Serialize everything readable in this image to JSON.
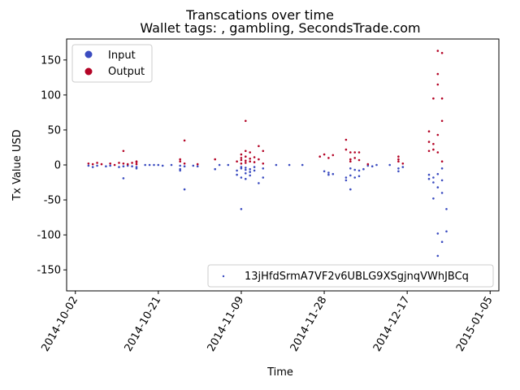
{
  "chart_data": {
    "type": "scatter",
    "title": "Transcations over time",
    "subtitle": "Wallet tags: , gambling, SecondsTrade.com",
    "xlabel": "Time",
    "ylabel": "Tx Value USD",
    "xlim": [
      "2014-09-30",
      "2015-01-07"
    ],
    "ylim": [
      -180,
      180
    ],
    "x_ticks": [
      "2014-10-02",
      "2014-10-21",
      "2014-11-09",
      "2014-11-28",
      "2014-12-17",
      "2015-01-05"
    ],
    "y_ticks": [
      -150,
      -100,
      -50,
      0,
      50,
      100,
      150
    ],
    "grid": false,
    "legend_upper": {
      "placement": "top-left",
      "entries": [
        {
          "label": "Input",
          "color": "#3b4cc0"
        },
        {
          "label": "Output",
          "color": "#b40426"
        }
      ]
    },
    "legend_lower": {
      "placement": "bottom-right",
      "entries": [
        {
          "label": "13jHfdSrmA7VF2v6UBLG9XSgjnqVWhJBCq",
          "color": "#3b4cc0"
        }
      ]
    },
    "series": [
      {
        "name": "Input",
        "color": "#3b4cc0",
        "points": [
          [
            "2014-10-05",
            -1
          ],
          [
            "2014-10-06",
            -3
          ],
          [
            "2014-10-07",
            -1
          ],
          [
            "2014-10-09",
            -2
          ],
          [
            "2014-10-10",
            -1
          ],
          [
            "2014-10-12",
            -3
          ],
          [
            "2014-10-13",
            -19
          ],
          [
            "2014-10-13",
            -2
          ],
          [
            "2014-10-14",
            -1
          ],
          [
            "2014-10-15",
            -2
          ],
          [
            "2014-10-16",
            -3
          ],
          [
            "2014-10-16",
            -5
          ],
          [
            "2014-10-18",
            0
          ],
          [
            "2014-10-19",
            0
          ],
          [
            "2014-10-20",
            0
          ],
          [
            "2014-10-21",
            0
          ],
          [
            "2014-10-22",
            -1
          ],
          [
            "2014-10-24",
            0
          ],
          [
            "2014-10-26",
            -1
          ],
          [
            "2014-10-26",
            -6
          ],
          [
            "2014-10-26",
            -8
          ],
          [
            "2014-10-27",
            -35
          ],
          [
            "2014-10-27",
            -2
          ],
          [
            "2014-10-29",
            -1
          ],
          [
            "2014-10-30",
            -2
          ],
          [
            "2014-11-03",
            -6
          ],
          [
            "2014-11-04",
            0
          ],
          [
            "2014-11-06",
            0
          ],
          [
            "2014-11-08",
            -14
          ],
          [
            "2014-11-08",
            -8
          ],
          [
            "2014-11-09",
            -3
          ],
          [
            "2014-11-09",
            -5
          ],
          [
            "2014-11-09",
            -63
          ],
          [
            "2014-11-09",
            -18
          ],
          [
            "2014-11-10",
            -4
          ],
          [
            "2014-11-10",
            -7
          ],
          [
            "2014-11-10",
            -12
          ],
          [
            "2014-11-10",
            -20
          ],
          [
            "2014-11-11",
            -6
          ],
          [
            "2014-11-11",
            -15
          ],
          [
            "2014-11-11",
            -10
          ],
          [
            "2014-11-12",
            -3
          ],
          [
            "2014-11-12",
            -8
          ],
          [
            "2014-11-13",
            -26
          ],
          [
            "2014-11-14",
            -18
          ],
          [
            "2014-11-14",
            -5
          ],
          [
            "2014-11-17",
            0
          ],
          [
            "2014-11-20",
            0
          ],
          [
            "2014-11-23",
            0
          ],
          [
            "2014-11-28",
            -9
          ],
          [
            "2014-11-29",
            -11
          ],
          [
            "2014-11-29",
            -14
          ],
          [
            "2014-11-30",
            -13
          ],
          [
            "2014-12-03",
            -22
          ],
          [
            "2014-12-03",
            -18
          ],
          [
            "2014-12-04",
            -35
          ],
          [
            "2014-12-04",
            -15
          ],
          [
            "2014-12-04",
            -5
          ],
          [
            "2014-12-05",
            -18
          ],
          [
            "2014-12-05",
            -7
          ],
          [
            "2014-12-06",
            -16
          ],
          [
            "2014-12-06",
            -8
          ],
          [
            "2014-12-07",
            -6
          ],
          [
            "2014-12-08",
            -1
          ],
          [
            "2014-12-09",
            -2
          ],
          [
            "2014-12-10",
            0
          ],
          [
            "2014-12-13",
            0
          ],
          [
            "2014-12-15",
            -5
          ],
          [
            "2014-12-15",
            -9
          ],
          [
            "2014-12-16",
            -3
          ],
          [
            "2014-12-22",
            -14
          ],
          [
            "2014-12-22",
            -20
          ],
          [
            "2014-12-23",
            -48
          ],
          [
            "2014-12-23",
            -25
          ],
          [
            "2014-12-23",
            -18
          ],
          [
            "2014-12-24",
            -98
          ],
          [
            "2014-12-24",
            -130
          ],
          [
            "2014-12-24",
            -32
          ],
          [
            "2014-12-24",
            -13
          ],
          [
            "2014-12-25",
            -110
          ],
          [
            "2014-12-25",
            -40
          ],
          [
            "2014-12-25",
            -22
          ],
          [
            "2014-12-25",
            -5
          ],
          [
            "2014-12-26",
            -63
          ],
          [
            "2014-12-26",
            -95
          ]
        ]
      },
      {
        "name": "Output",
        "color": "#b40426",
        "points": [
          [
            "2014-10-05",
            2
          ],
          [
            "2014-10-06",
            1
          ],
          [
            "2014-10-07",
            3
          ],
          [
            "2014-10-08",
            1
          ],
          [
            "2014-10-10",
            2
          ],
          [
            "2014-10-11",
            0
          ],
          [
            "2014-10-12",
            3
          ],
          [
            "2014-10-13",
            20
          ],
          [
            "2014-10-13",
            2
          ],
          [
            "2014-10-14",
            1
          ],
          [
            "2014-10-15",
            3
          ],
          [
            "2014-10-16",
            4
          ],
          [
            "2014-10-16",
            5
          ],
          [
            "2014-10-16",
            1
          ],
          [
            "2014-10-26",
            8
          ],
          [
            "2014-10-26",
            5
          ],
          [
            "2014-10-27",
            35
          ],
          [
            "2014-10-27",
            2
          ],
          [
            "2014-10-30",
            1
          ],
          [
            "2014-11-03",
            8
          ],
          [
            "2014-11-08",
            5
          ],
          [
            "2014-11-09",
            2
          ],
          [
            "2014-11-09",
            15
          ],
          [
            "2014-11-09",
            10
          ],
          [
            "2014-11-09",
            7
          ],
          [
            "2014-11-10",
            63
          ],
          [
            "2014-11-10",
            20
          ],
          [
            "2014-11-10",
            12
          ],
          [
            "2014-11-10",
            6
          ],
          [
            "2014-11-10",
            3
          ],
          [
            "2014-11-11",
            18
          ],
          [
            "2014-11-11",
            9
          ],
          [
            "2014-11-11",
            5
          ],
          [
            "2014-11-12",
            11
          ],
          [
            "2014-11-12",
            4
          ],
          [
            "2014-11-13",
            27
          ],
          [
            "2014-11-13",
            8
          ],
          [
            "2014-11-14",
            20
          ],
          [
            "2014-11-14",
            2
          ],
          [
            "2014-11-27",
            12
          ],
          [
            "2014-11-28",
            15
          ],
          [
            "2014-11-29",
            10
          ],
          [
            "2014-11-30",
            14
          ],
          [
            "2014-12-03",
            36
          ],
          [
            "2014-12-03",
            22
          ],
          [
            "2014-12-04",
            18
          ],
          [
            "2014-12-04",
            8
          ],
          [
            "2014-12-04",
            5
          ],
          [
            "2014-12-05",
            18
          ],
          [
            "2014-12-05",
            10
          ],
          [
            "2014-12-06",
            18
          ],
          [
            "2014-12-06",
            7
          ],
          [
            "2014-12-08",
            1
          ],
          [
            "2014-12-15",
            12
          ],
          [
            "2014-12-15",
            8
          ],
          [
            "2014-12-15",
            5
          ],
          [
            "2014-12-16",
            2
          ],
          [
            "2014-12-22",
            48
          ],
          [
            "2014-12-22",
            33
          ],
          [
            "2014-12-22",
            20
          ],
          [
            "2014-12-23",
            95
          ],
          [
            "2014-12-23",
            30
          ],
          [
            "2014-12-23",
            22
          ],
          [
            "2014-12-24",
            163
          ],
          [
            "2014-12-24",
            130
          ],
          [
            "2014-12-24",
            115
          ],
          [
            "2014-12-24",
            43
          ],
          [
            "2014-12-24",
            18
          ],
          [
            "2014-12-25",
            160
          ],
          [
            "2014-12-25",
            95
          ],
          [
            "2014-12-25",
            63
          ],
          [
            "2014-12-25",
            5
          ]
        ]
      }
    ]
  }
}
